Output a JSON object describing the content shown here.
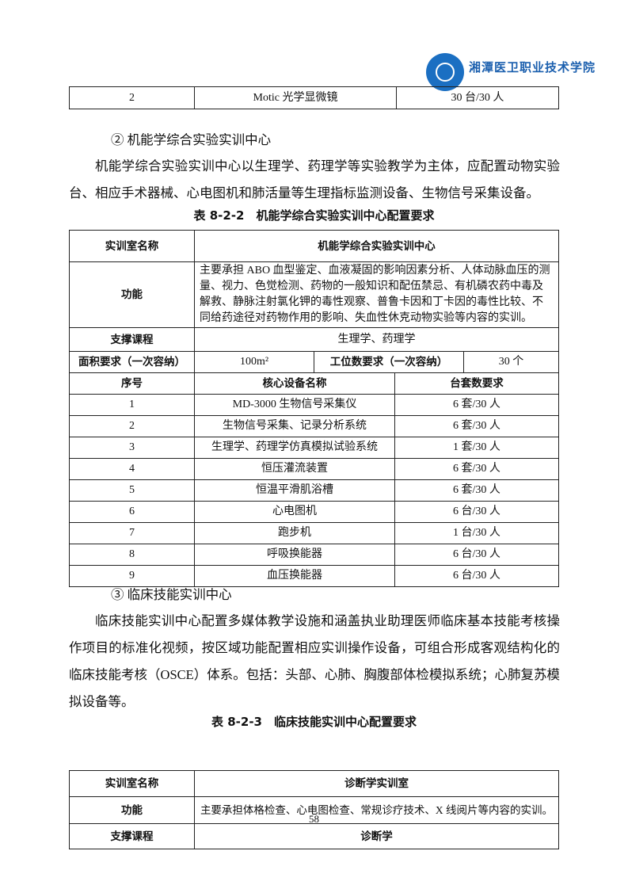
{
  "header": {
    "logo_text": "湘潭医卫职业技术学院",
    "brand_color": "#1b6fc2"
  },
  "top_table_row": [
    "2",
    "Motic 光学显微镜",
    "30 台/30 人"
  ],
  "section2": {
    "heading": "② 机能学综合实验实训中心",
    "paragraph": "机能学综合实验实训中心以生理学、药理学等实验教学为主体，应配置动物实验台、相应手术器械、心电图机和肺活量等生理指标监测设备、生物信号采集设备。",
    "caption": "表 8-2-2　机能学综合实验实训中心配置要求"
  },
  "table2": {
    "name_label": "实训室名称",
    "name_value": "机能学综合实验实训中心",
    "function_label": "功能",
    "function_value": "主要承担 ABO 血型鉴定、血液凝固的影响因素分析、人体动脉血压的测量、视力、色觉检测、药物的一般知识和配伍禁忌、有机磷农药中毒及解救、静脉注射氯化钾的毒性观察、普鲁卡因和丁卡因的毒性比较、不同给药途径对药物作用的影响、失血性休克动物实验等内容的实训。",
    "course_label": "支撑课程",
    "course_value": "生理学、药理学",
    "area_label": "面积要求（一次容纳）",
    "area_value": "100m²",
    "station_label": "工位数要求（一次容纳）",
    "station_value": "30 个",
    "columns": [
      "序号",
      "核心设备名称",
      "台套数要求"
    ],
    "rows": [
      [
        "1",
        "MD-3000 生物信号采集仪",
        "6 套/30 人"
      ],
      [
        "2",
        "生物信号采集、记录分析系统",
        "6 套/30 人"
      ],
      [
        "3",
        "生理学、药理学仿真模拟试验系统",
        "1 套/30 人"
      ],
      [
        "4",
        "恒压灌流装置",
        "6 套/30 人"
      ],
      [
        "5",
        "恒温平滑肌浴槽",
        "6 套/30 人"
      ],
      [
        "6",
        "心电图机",
        "6 台/30 人"
      ],
      [
        "7",
        "跑步机",
        "1 台/30 人"
      ],
      [
        "8",
        "呼吸换能器",
        "6 台/30 人"
      ],
      [
        "9",
        "血压换能器",
        "6 台/30 人"
      ]
    ]
  },
  "section3": {
    "heading": "③ 临床技能实训中心",
    "paragraph": "临床技能实训中心配置多媒体教学设施和涵盖执业助理医师临床基本技能考核操作项目的标准化视频，按区域功能配置相应实训操作设备，可组合形成客观结构化的临床技能考核（OSCE）体系。包括：头部、心肺、胸腹部体检模拟系统；心肺复苏模拟设备等。",
    "caption": "表 8-2-3　临床技能实训中心配置要求"
  },
  "table3": {
    "name_label": "实训室名称",
    "name_value": "诊断学实训室",
    "function_label": "功能",
    "function_value": "主要承担体格检查、心电图检查、常规诊疗技术、X 线阅片等内容的实训。",
    "course_label": "支撑课程",
    "course_value": "诊断学"
  },
  "footer": {
    "page_number": "58"
  }
}
